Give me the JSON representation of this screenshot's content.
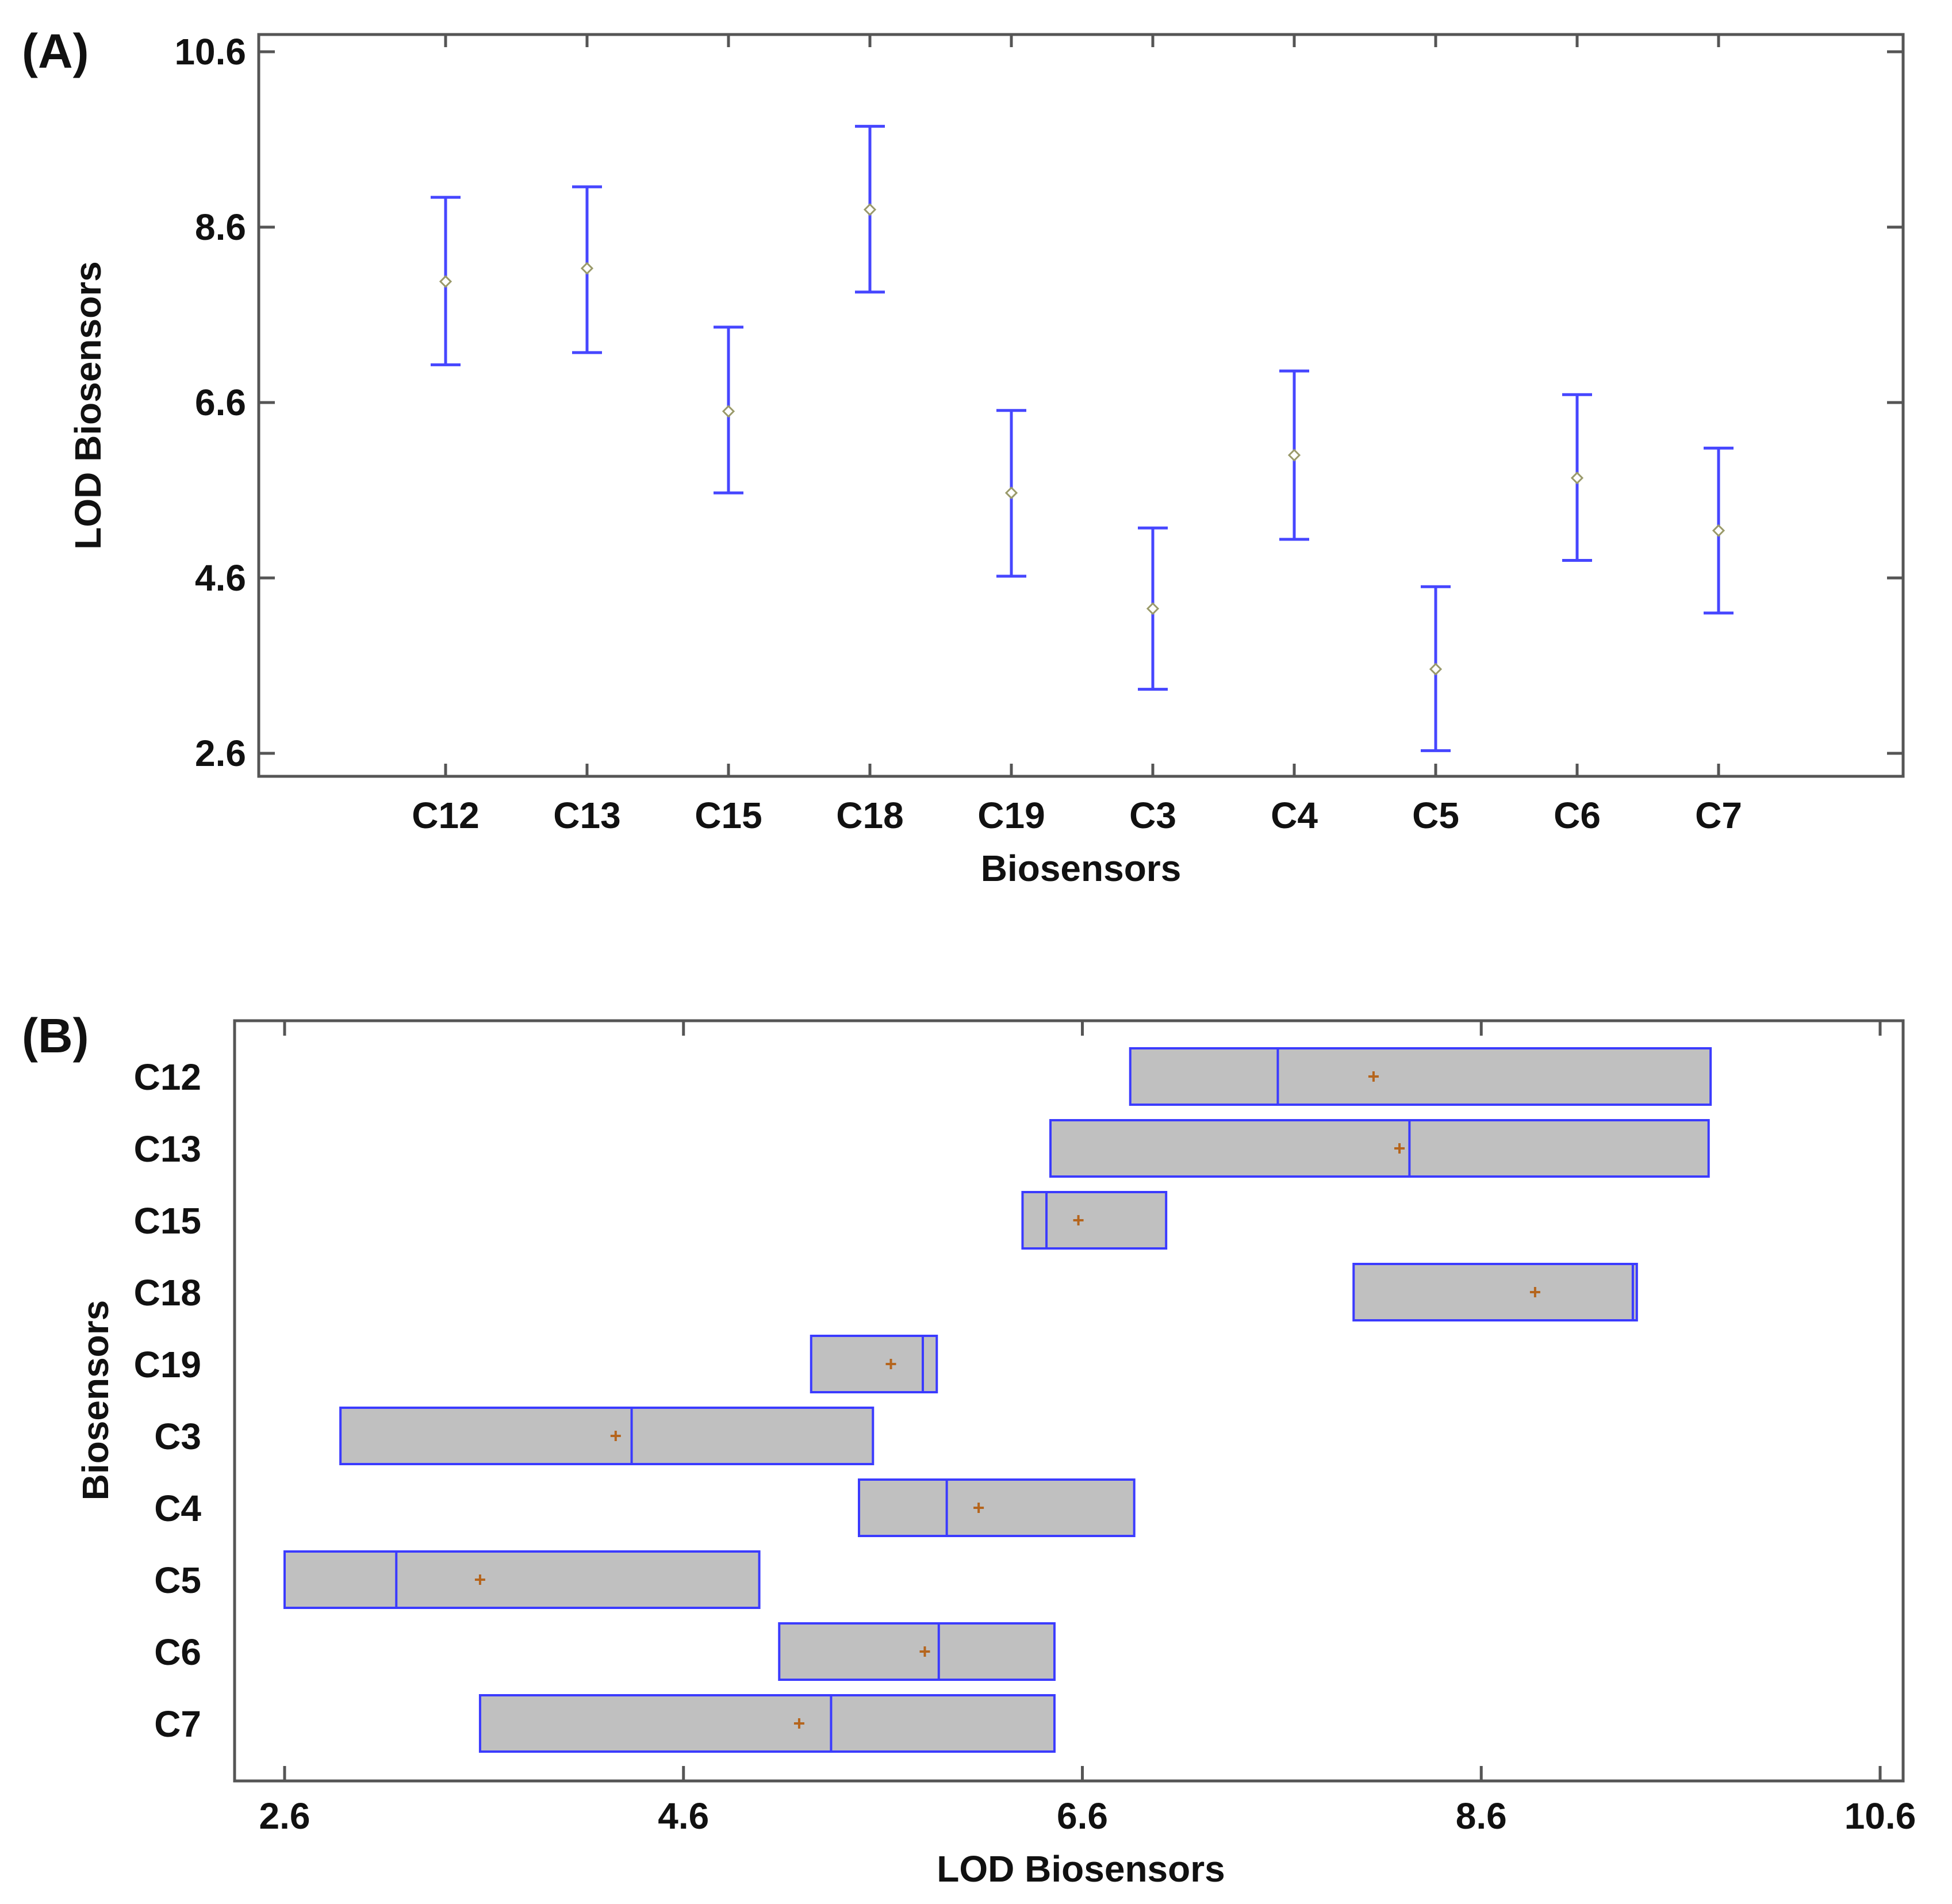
{
  "colors": {
    "interval": "#4646ff",
    "mean_marker": "#9a9a6a",
    "box_fill": "#c0c0c0",
    "box_edge": "#3b3bff",
    "median_marker": "#b5651d",
    "frame": "#555555",
    "text": "#111111"
  },
  "chart_data": [
    {
      "panel": "(A)",
      "type": "errorbar",
      "xlabel": "Biosensors",
      "ylabel": "LOD Biosensors",
      "ylim": [
        2.6,
        10.6
      ],
      "yticks": [
        "2.6",
        "4.6",
        "6.6",
        "8.6",
        "10.6"
      ],
      "categories": [
        "C12",
        "C13",
        "C15",
        "C18",
        "C19",
        "C3",
        "C4",
        "C5",
        "C6",
        "C7"
      ],
      "series": [
        {
          "name": "means",
          "mean": [
            7.98,
            8.13,
            6.5,
            8.8,
            5.57,
            4.25,
            6.0,
            3.56,
            5.74,
            5.14
          ],
          "lower": [
            7.03,
            7.17,
            5.57,
            7.86,
            4.62,
            3.33,
            5.04,
            2.63,
            4.8,
            4.2
          ],
          "upper": [
            8.94,
            9.06,
            7.46,
            9.75,
            6.51,
            5.17,
            6.96,
            4.5,
            6.69,
            6.08
          ]
        }
      ]
    },
    {
      "panel": "(B)",
      "type": "boxplot",
      "xlabel": "LOD Biosensors",
      "ylabel": "Biosensors",
      "xlim": [
        2.6,
        10.6
      ],
      "xticks": [
        "2.6",
        "4.6",
        "6.6",
        "8.6",
        "10.6"
      ],
      "categories": [
        "C12",
        "C13",
        "C15",
        "C18",
        "C19",
        "C3",
        "C4",
        "C5",
        "C6",
        "C7"
      ],
      "series": [
        {
          "name": "distribution",
          "q1": [
            6.84,
            6.44,
            6.3,
            7.96,
            5.24,
            2.88,
            5.48,
            2.6,
            5.08,
            3.58
          ],
          "median": [
            7.58,
            8.24,
            6.42,
            9.36,
            5.8,
            4.34,
            5.92,
            3.16,
            5.88,
            5.34
          ],
          "q3": [
            9.75,
            9.74,
            7.02,
            9.38,
            5.87,
            5.55,
            6.86,
            4.98,
            6.46,
            6.46
          ],
          "mean": [
            8.06,
            8.19,
            6.58,
            8.87,
            5.64,
            4.26,
            6.08,
            3.58,
            5.81,
            5.18
          ]
        }
      ]
    }
  ]
}
